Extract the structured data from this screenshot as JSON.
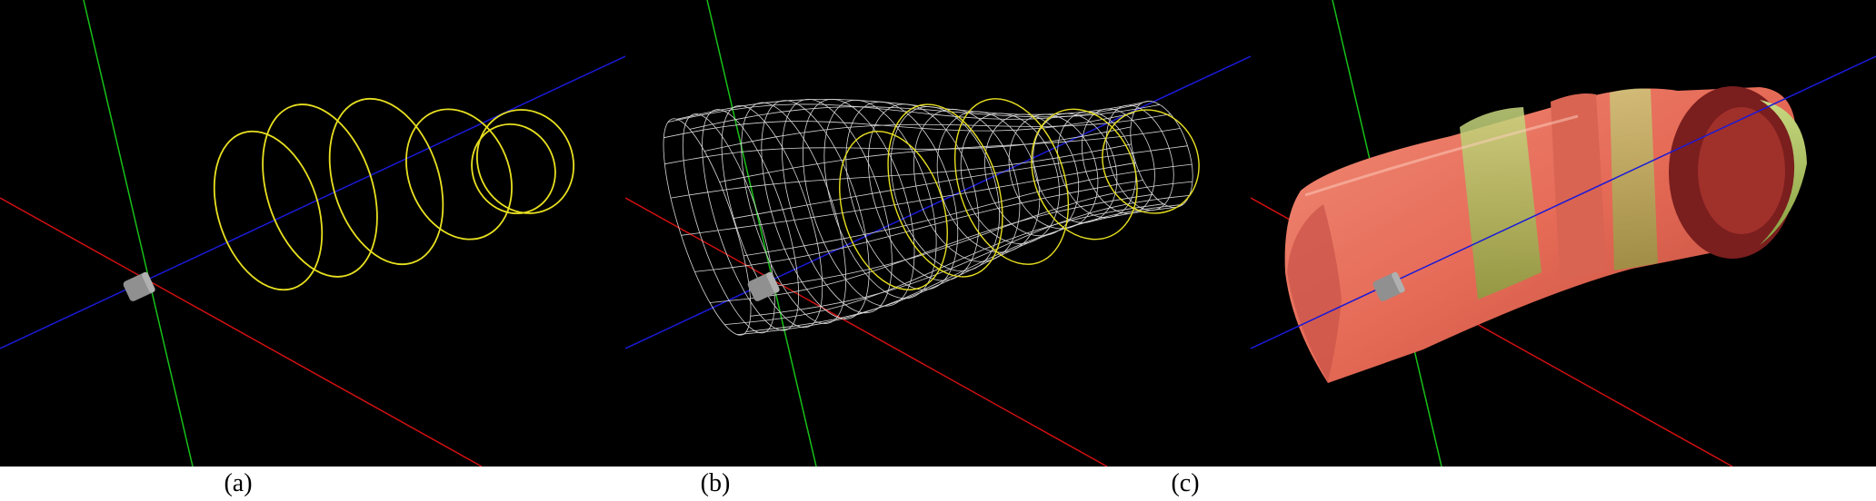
{
  "figure": {
    "panels": [
      {
        "id": "a",
        "caption": "(a)",
        "content": "contour-rings"
      },
      {
        "id": "b",
        "caption": "(b)",
        "content": "wireframe-mesh"
      },
      {
        "id": "c",
        "caption": "(c)",
        "content": "shaded-surface"
      }
    ]
  },
  "colors": {
    "background": "#000000",
    "axis_x": "#d01010",
    "axis_y": "#18c018",
    "axis_z": "#1a1ad8",
    "contour": "#e8e020",
    "mesh": "#d8d8d8",
    "surface": "#e8705e",
    "surface_inner": "#a8c060",
    "origin_marker": "#909090"
  }
}
